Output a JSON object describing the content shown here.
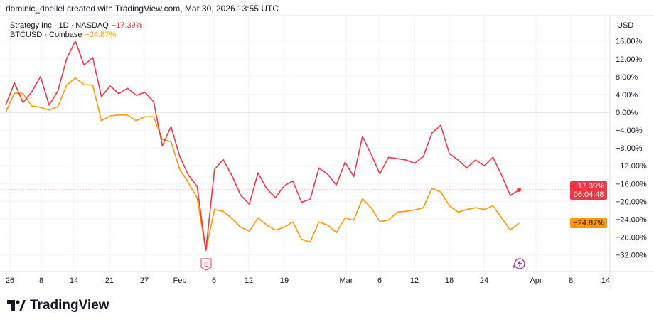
{
  "header": {
    "text": "dominic_doellel created with TradingView.com, Mar 30, 2026 13:55 UTC"
  },
  "legend": [
    {
      "label": "Strategy Inc · 1D · NASDAQ",
      "value": "−17.39%",
      "color": "#f23645"
    },
    {
      "label": "BTCUSD · Coinbase",
      "value": "−24.87%",
      "color": "#ff9800"
    }
  ],
  "currency": "USD",
  "tags": {
    "mstr_value": "−17.39%",
    "mstr_countdown": "06:04:48",
    "btc_value": "−24.87%"
  },
  "earnings_marker": "E",
  "logo": "TradingView",
  "chart_data": {
    "type": "line",
    "ylim": [
      -34,
      18
    ],
    "y_ticks": [
      16,
      12,
      8,
      4,
      0,
      -4,
      -8,
      -12,
      -16,
      -20,
      -24,
      -28,
      -32
    ],
    "y_tick_labels": [
      "16.00%",
      "12.00%",
      "8.00%",
      "4.00%",
      "0.00%",
      "−4.00%",
      "−8.00%",
      "−12.00%",
      "−16.00%",
      "−20.00%",
      "−24.00%",
      "−28.00%",
      "−32.00%"
    ],
    "x_tick_labels": [
      "26",
      "8",
      "14",
      "21",
      "27",
      "Feb",
      "6",
      "12",
      "19",
      "Mar",
      "6",
      "12",
      "18",
      "24",
      "Apr",
      "8",
      "14"
    ],
    "grid": true,
    "legend_placement": "top-left",
    "series": [
      {
        "name": "Strategy Inc · 1D · NASDAQ",
        "color": "#f23645",
        "values": [
          1.6,
          6.6,
          2.2,
          4.6,
          8.0,
          1.6,
          4.8,
          12.0,
          16.0,
          10.6,
          12.3,
          3.5,
          5.9,
          4.2,
          5.4,
          3.8,
          4.5,
          2.4,
          -7.5,
          -3.2,
          -9.9,
          -14.1,
          -16.6,
          -31.0,
          -12.8,
          -10.6,
          -14.2,
          -18.6,
          -20.6,
          -13.6,
          -17.1,
          -19.2,
          -16.5,
          -15.4,
          -20.2,
          -19.5,
          -12.5,
          -13.9,
          -16.3,
          -11.2,
          -14.4,
          -5.4,
          -9.4,
          -13.8,
          -10.1,
          -10.4,
          -10.7,
          -11.4,
          -9.9,
          -4.6,
          -2.9,
          -9.3,
          -10.7,
          -12.5,
          -10.7,
          -12.0,
          -10.1,
          -14.1,
          -18.7,
          -17.39
        ]
      },
      {
        "name": "BTCUSD · Coinbase",
        "color": "#ff9800",
        "values": [
          0.0,
          4.3,
          4.2,
          1.4,
          1.1,
          0.5,
          1.3,
          6.1,
          7.7,
          6.2,
          6.1,
          -1.9,
          -0.8,
          -0.6,
          -0.6,
          -1.9,
          -1.0,
          -1.0,
          -6.1,
          -6.6,
          -12.8,
          -15.8,
          -19.2,
          -31.0,
          -21.8,
          -22.2,
          -23.8,
          -25.8,
          -26.7,
          -23.7,
          -25.3,
          -26.4,
          -25.8,
          -24.6,
          -28.5,
          -29.1,
          -24.6,
          -25.3,
          -27.0,
          -23.7,
          -24.2,
          -19.4,
          -21.4,
          -24.5,
          -24.2,
          -22.4,
          -22.2,
          -21.9,
          -21.4,
          -17.0,
          -17.9,
          -21.0,
          -22.4,
          -21.8,
          -21.4,
          -21.8,
          -21.0,
          -23.7,
          -26.4,
          -24.87
        ]
      }
    ]
  }
}
